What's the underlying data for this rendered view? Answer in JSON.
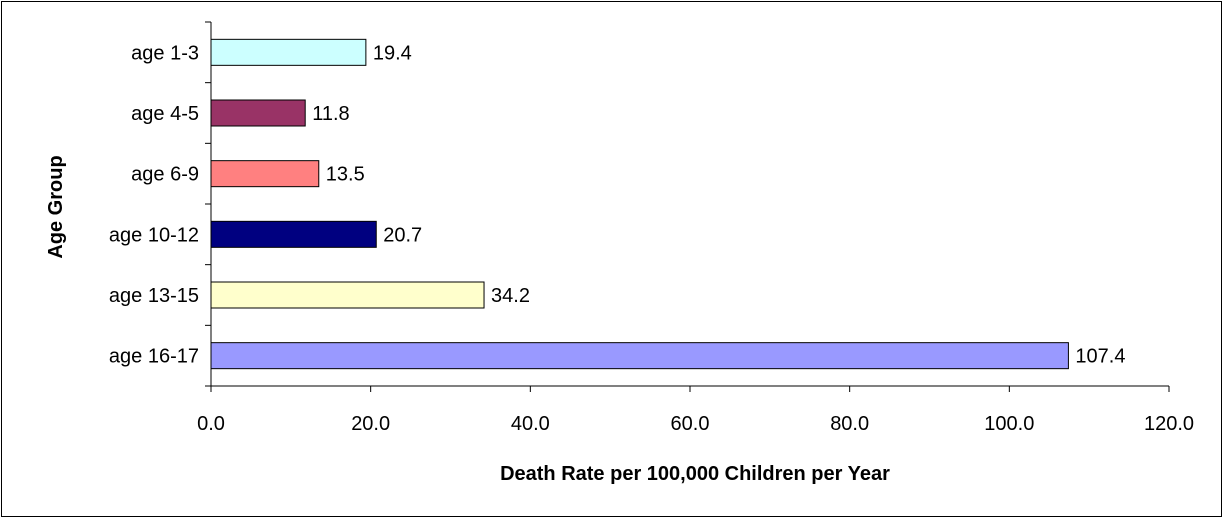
{
  "chart_data": {
    "type": "bar",
    "orientation": "horizontal",
    "title": "",
    "xlabel": "Death Rate per 100,000 Children per Year",
    "ylabel": "Age Group",
    "categories": [
      "age 1-3",
      "age 4-5",
      "age 6-9",
      "age 10-12",
      "age 13-15",
      "age 16-17"
    ],
    "values": [
      19.4,
      11.8,
      13.5,
      20.7,
      34.2,
      107.4
    ],
    "value_labels": [
      "19.4",
      "11.8",
      "13.5",
      "20.7",
      "34.2",
      "107.4"
    ],
    "bar_colors": [
      "#CCFFFF",
      "#993366",
      "#FF8080",
      "#000080",
      "#FFFFCC",
      "#9999FF"
    ],
    "xlim": [
      0,
      120
    ],
    "x_ticks": [
      0,
      20,
      40,
      60,
      80,
      100,
      120
    ],
    "x_tick_labels": [
      "0.0",
      "20.0",
      "40.0",
      "60.0",
      "80.0",
      "100.0",
      "120.0"
    ],
    "grid": false,
    "legend": "none"
  }
}
